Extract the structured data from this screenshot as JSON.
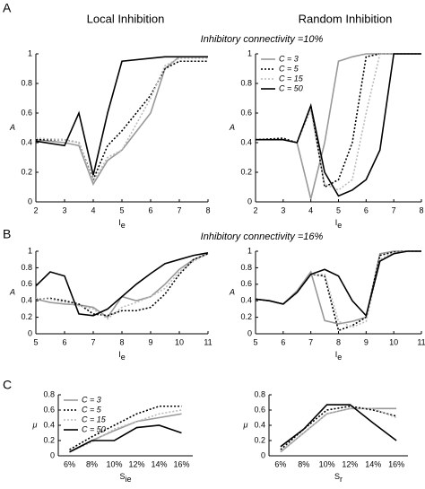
{
  "header": {
    "panel_a": "A",
    "panel_b": "B",
    "panel_c": "C",
    "col_left": "Local Inhibition",
    "col_right": "Random Inhibition",
    "conn_a": "Inhibitory connectivity =10%",
    "conn_b": "Inhibitory connectivity =16%"
  },
  "chart_data": [
    {
      "type": "line",
      "xlabel": "I",
      "xlabel_sub": "e",
      "ylabel": "A",
      "xlim": [
        2,
        8
      ],
      "xticks": [
        2,
        3,
        4,
        5,
        6,
        7,
        8
      ],
      "ylim": [
        0,
        1
      ],
      "yticks": [
        0,
        0.2,
        0.4,
        0.6,
        0.8,
        1
      ],
      "x": [
        2,
        3,
        3.5,
        4,
        4.5,
        5,
        6,
        6.5,
        7,
        8
      ],
      "series": [
        {
          "color": "#999999",
          "dash": "solid",
          "values": [
            0.42,
            0.4,
            0.38,
            0.12,
            0.28,
            0.35,
            0.6,
            0.9,
            0.98,
            0.98
          ]
        },
        {
          "color": "#000000",
          "dash": "dotted",
          "values": [
            0.42,
            0.42,
            0.4,
            0.15,
            0.38,
            0.48,
            0.72,
            0.9,
            0.95,
            0.95
          ]
        },
        {
          "color": "#bbbbbb",
          "dash": "dotted",
          "values": [
            0.43,
            0.42,
            0.4,
            0.14,
            0.3,
            0.35,
            0.7,
            0.92,
            0.97,
            0.97
          ]
        },
        {
          "color": "#000000",
          "dash": "solid",
          "values": [
            0.41,
            0.38,
            0.6,
            0.18,
            0.6,
            0.95,
            0.97,
            0.98,
            0.98,
            0.98
          ]
        }
      ]
    },
    {
      "type": "line",
      "xlabel": "I",
      "xlabel_sub": "e",
      "ylabel": "A",
      "xlim": [
        2,
        8
      ],
      "xticks": [
        2,
        3,
        4,
        5,
        6,
        7,
        8
      ],
      "ylim": [
        0,
        1
      ],
      "yticks": [
        0,
        0.2,
        0.4,
        0.6,
        0.8,
        1
      ],
      "legend": "top-left",
      "x": [
        2,
        3,
        3.5,
        4,
        4.5,
        5,
        5.5,
        6,
        6.5,
        7,
        8
      ],
      "series": [
        {
          "name": "C = 3",
          "color": "#999999",
          "dash": "solid",
          "values": [
            0.42,
            0.42,
            0.4,
            0.02,
            0.4,
            0.95,
            0.98,
            1,
            1,
            1,
            1
          ]
        },
        {
          "name": "C = 5",
          "color": "#000000",
          "dash": "dotted",
          "values": [
            0.42,
            0.43,
            0.4,
            0.65,
            0.1,
            0.15,
            0.4,
            0.98,
            1,
            1,
            1
          ]
        },
        {
          "name": "C = 15",
          "color": "#bbbbbb",
          "dash": "dotted",
          "values": [
            0.42,
            0.42,
            0.4,
            0.62,
            0.12,
            0.08,
            0.15,
            0.6,
            1,
            1,
            1
          ]
        },
        {
          "name": "C = 50",
          "color": "#000000",
          "dash": "solid",
          "values": [
            0.42,
            0.42,
            0.4,
            0.65,
            0.2,
            0.04,
            0.08,
            0.15,
            0.35,
            1,
            1
          ]
        }
      ]
    },
    {
      "type": "line",
      "xlabel": "I",
      "xlabel_sub": "e",
      "ylabel": "A",
      "xlim": [
        5,
        11
      ],
      "xticks": [
        5,
        6,
        7,
        8,
        9,
        10,
        11
      ],
      "ylim": [
        0,
        1
      ],
      "yticks": [
        0,
        0.2,
        0.4,
        0.6,
        0.8,
        1
      ],
      "x": [
        5,
        5.5,
        6,
        6.5,
        7,
        7.5,
        8,
        8.5,
        9,
        9.5,
        10,
        10.5,
        11
      ],
      "series": [
        {
          "color": "#999999",
          "dash": "solid",
          "values": [
            0.42,
            0.38,
            0.36,
            0.35,
            0.32,
            0.2,
            0.45,
            0.4,
            0.45,
            0.6,
            0.78,
            0.9,
            0.97
          ]
        },
        {
          "color": "#000000",
          "dash": "dotted",
          "values": [
            0.42,
            0.43,
            0.4,
            0.36,
            0.24,
            0.22,
            0.28,
            0.28,
            0.32,
            0.48,
            0.72,
            0.9,
            0.97
          ]
        },
        {
          "color": "#bbbbbb",
          "dash": "dotted",
          "values": [
            0.43,
            0.42,
            0.38,
            0.34,
            0.3,
            0.18,
            0.32,
            0.38,
            0.45,
            0.55,
            0.75,
            0.88,
            0.97
          ]
        },
        {
          "color": "#000000",
          "dash": "solid",
          "values": [
            0.58,
            0.75,
            0.7,
            0.24,
            0.22,
            0.3,
            0.45,
            0.6,
            0.73,
            0.85,
            0.9,
            0.95,
            0.98
          ]
        }
      ]
    },
    {
      "type": "line",
      "xlabel": "I",
      "xlabel_sub": "e",
      "ylabel": "A",
      "xlim": [
        5,
        11
      ],
      "xticks": [
        5,
        6,
        7,
        8,
        9,
        10,
        11
      ],
      "ylim": [
        0,
        1
      ],
      "yticks": [
        0,
        0.2,
        0.4,
        0.6,
        0.8,
        1
      ],
      "x": [
        5,
        5.5,
        6,
        6.5,
        7,
        7.5,
        8,
        8.5,
        9,
        9.5,
        10,
        10.5,
        11
      ],
      "series": [
        {
          "color": "#999999",
          "dash": "solid",
          "values": [
            0.42,
            0.4,
            0.36,
            0.52,
            0.75,
            0.16,
            0.12,
            0.15,
            0.2,
            0.97,
            1,
            1,
            1
          ]
        },
        {
          "color": "#000000",
          "dash": "dotted",
          "values": [
            0.42,
            0.4,
            0.36,
            0.5,
            0.72,
            0.7,
            0.04,
            0.1,
            0.2,
            0.95,
            0.99,
            1,
            1
          ]
        },
        {
          "color": "#bbbbbb",
          "dash": "dotted",
          "values": [
            0.42,
            0.4,
            0.36,
            0.5,
            0.72,
            0.72,
            0.15,
            0.08,
            0.15,
            0.9,
            0.98,
            1,
            1
          ]
        },
        {
          "color": "#000000",
          "dash": "solid",
          "values": [
            0.42,
            0.4,
            0.36,
            0.5,
            0.72,
            0.78,
            0.7,
            0.4,
            0.22,
            0.88,
            0.97,
            1,
            1
          ]
        }
      ]
    },
    {
      "type": "line",
      "xlabel": "S",
      "xlabel_sub": "ie",
      "ylabel": "μ",
      "ylim": [
        0,
        0.8
      ],
      "yticks": [
        0,
        0.2,
        0.4,
        0.6,
        0.8
      ],
      "legend": "top-left",
      "categories": [
        "6%",
        "8%",
        "10%",
        "12%",
        "14%",
        "16%"
      ],
      "series": [
        {
          "name": "C = 3",
          "color": "#999999",
          "dash": "solid",
          "values": [
            0.05,
            0.2,
            0.33,
            0.45,
            0.5,
            0.55
          ]
        },
        {
          "name": "C = 5",
          "color": "#000000",
          "dash": "dotted",
          "values": [
            0.08,
            0.25,
            0.4,
            0.55,
            0.65,
            0.65
          ]
        },
        {
          "name": "C = 15",
          "color": "#bbbbbb",
          "dash": "dotted",
          "values": [
            0.05,
            0.18,
            0.35,
            0.45,
            0.55,
            0.6
          ]
        },
        {
          "name": "C = 50",
          "color": "#000000",
          "dash": "solid",
          "values": [
            0.05,
            0.2,
            0.2,
            0.37,
            0.4,
            0.3
          ]
        }
      ]
    },
    {
      "type": "line",
      "xlabel": "S",
      "xlabel_sub": "r",
      "ylabel": "μ",
      "ylim": [
        0,
        0.8
      ],
      "yticks": [
        0,
        0.2,
        0.4,
        0.6,
        0.8
      ],
      "categories": [
        "6%",
        "8%",
        "10%",
        "12%",
        "14%",
        "16%"
      ],
      "series": [
        {
          "color": "#999999",
          "dash": "solid",
          "values": [
            0.05,
            0.3,
            0.55,
            0.62,
            0.62,
            0.62
          ]
        },
        {
          "color": "#000000",
          "dash": "dotted",
          "values": [
            0.08,
            0.35,
            0.6,
            0.65,
            0.6,
            0.52
          ]
        },
        {
          "color": "#bbbbbb",
          "dash": "dotted",
          "values": [
            0.06,
            0.3,
            0.55,
            0.62,
            0.62,
            0.5
          ]
        },
        {
          "color": "#000000",
          "dash": "solid",
          "values": [
            0.12,
            0.35,
            0.67,
            0.67,
            0.43,
            0.2
          ]
        }
      ]
    }
  ]
}
